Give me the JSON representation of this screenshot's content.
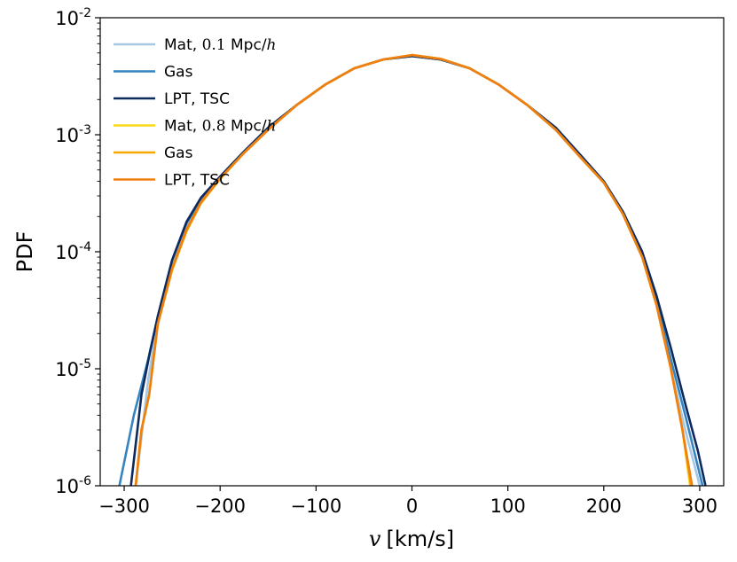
{
  "chart_data": {
    "type": "line",
    "title": "",
    "xlabel_var": "v",
    "xlabel_unit": "[km/s]",
    "ylabel": "PDF",
    "xlim": [
      -325,
      325
    ],
    "ylim": [
      1e-06,
      0.01
    ],
    "yscale": "log",
    "xticks": [
      -300,
      -200,
      -100,
      0,
      100,
      200,
      300
    ],
    "xtick_labels": [
      "−300",
      "−200",
      "−100",
      "0",
      "100",
      "200",
      "300"
    ],
    "yticks": [
      {
        "value": 1e-06,
        "base": "10",
        "exp": "-6"
      },
      {
        "value": 1e-05,
        "base": "10",
        "exp": "-5"
      },
      {
        "value": 0.0001,
        "base": "10",
        "exp": "-4"
      },
      {
        "value": 0.001,
        "base": "10",
        "exp": "-3"
      },
      {
        "value": 0.01,
        "base": "10",
        "exp": "-2"
      }
    ],
    "legend_position": "upper-left",
    "series": [
      {
        "name": "Mat, 0.1 Mpc/h",
        "label_prefix": "Mat, ",
        "label_scale": "0.1",
        "label_unit": " Mpc/",
        "label_h": "h",
        "color": "#a6c8e4",
        "x": [
          -288,
          -275,
          -265,
          -250,
          -235,
          -220,
          -200,
          -175,
          -150,
          -120,
          -90,
          -60,
          -30,
          0,
          30,
          60,
          90,
          120,
          150,
          175,
          200,
          220,
          240,
          255,
          270,
          285,
          300
        ],
        "y": [
          1e-06,
          8e-06,
          2.6e-05,
          8e-05,
          0.00017,
          0.00028,
          0.00043,
          0.0007,
          0.0011,
          0.0018,
          0.0027,
          0.0037,
          0.0044,
          0.00475,
          0.0044,
          0.0037,
          0.0027,
          0.0018,
          0.0011,
          0.00065,
          0.00039,
          0.00021,
          9e-05,
          3.5e-05,
          1e-05,
          3e-06,
          1e-06
        ]
      },
      {
        "name": "Gas",
        "color": "#3584bf",
        "x": [
          -305,
          -290,
          -275,
          -265,
          -250,
          -235,
          -220,
          -200,
          -175,
          -150,
          -120,
          -90,
          -60,
          -30,
          0,
          30,
          60,
          90,
          120,
          150,
          175,
          200,
          220,
          240,
          255,
          270,
          285,
          303
        ],
        "y": [
          1e-06,
          4e-06,
          1.2e-05,
          2.8e-05,
          8.5e-05,
          0.000175,
          0.00028,
          0.00043,
          0.0007,
          0.0011,
          0.0018,
          0.0027,
          0.0037,
          0.0044,
          0.00475,
          0.0044,
          0.0037,
          0.0027,
          0.0018,
          0.0011,
          0.00065,
          0.00039,
          0.00021,
          9e-05,
          3.8e-05,
          1.2e-05,
          4e-06,
          1e-06
        ]
      },
      {
        "name": "LPT, TSC",
        "color": "#0c2a5e",
        "x": [
          -293,
          -282,
          -273,
          -265,
          -250,
          -235,
          -220,
          -200,
          -175,
          -150,
          -120,
          -90,
          -60,
          -30,
          0,
          30,
          60,
          90,
          120,
          150,
          175,
          200,
          220,
          240,
          255,
          270,
          285,
          298,
          306
        ],
        "y": [
          1e-06,
          6e-06,
          1.4e-05,
          2.8e-05,
          8.5e-05,
          0.00018,
          0.00029,
          0.00044,
          0.00072,
          0.00115,
          0.0018,
          0.0027,
          0.0037,
          0.0044,
          0.0047,
          0.0044,
          0.0037,
          0.0027,
          0.0018,
          0.00115,
          0.00068,
          0.0004,
          0.00022,
          0.0001,
          4.2e-05,
          1.5e-05,
          5e-06,
          2e-06,
          1e-06
        ]
      },
      {
        "name": "Mat, 0.8 Mpc/h",
        "label_prefix": "Mat, ",
        "label_scale": "0.8",
        "label_unit": " Mpc/",
        "label_h": "h",
        "color": "#f7d917",
        "x": [
          -288,
          -282,
          -274,
          -265,
          -250,
          -235,
          -220,
          -200,
          -175,
          -150,
          -120,
          -90,
          -60,
          -30,
          0,
          30,
          60,
          90,
          120,
          150,
          175,
          200,
          220,
          240,
          255,
          270,
          282,
          290
        ],
        "y": [
          1e-06,
          3e-06,
          6e-06,
          2.4e-05,
          7e-05,
          0.00015,
          0.00026,
          0.00042,
          0.0007,
          0.0011,
          0.0018,
          0.0027,
          0.0037,
          0.0044,
          0.0048,
          0.00445,
          0.0037,
          0.0027,
          0.0018,
          0.0011,
          0.00065,
          0.00039,
          0.00021,
          9e-05,
          3.5e-05,
          1e-05,
          3e-06,
          1e-06
        ]
      },
      {
        "name": "Gas",
        "color": "#f5a800",
        "x": [
          -288,
          -282,
          -274,
          -265,
          -250,
          -235,
          -220,
          -200,
          -175,
          -150,
          -120,
          -90,
          -60,
          -30,
          0,
          30,
          60,
          90,
          120,
          150,
          175,
          200,
          220,
          240,
          255,
          270,
          282,
          291
        ],
        "y": [
          1e-06,
          3e-06,
          6e-06,
          2.4e-05,
          7e-05,
          0.00015,
          0.00026,
          0.00042,
          0.0007,
          0.0011,
          0.0018,
          0.0027,
          0.0037,
          0.0044,
          0.0048,
          0.00445,
          0.0037,
          0.0027,
          0.0018,
          0.0011,
          0.00065,
          0.00039,
          0.00021,
          9e-05,
          3.5e-05,
          1e-05,
          3e-06,
          1e-06
        ]
      },
      {
        "name": "LPT, TSC",
        "color": "#f07f12",
        "x": [
          -288,
          -282,
          -274,
          -265,
          -250,
          -235,
          -220,
          -200,
          -175,
          -150,
          -120,
          -90,
          -60,
          -30,
          0,
          30,
          60,
          90,
          120,
          150,
          175,
          200,
          220,
          240,
          255,
          270,
          282,
          292
        ],
        "y": [
          1e-06,
          3e-06,
          6e-06,
          2.4e-05,
          7.2e-05,
          0.000155,
          0.000265,
          0.000425,
          0.0007,
          0.0011,
          0.0018,
          0.0027,
          0.0037,
          0.0044,
          0.0048,
          0.00445,
          0.0037,
          0.0027,
          0.0018,
          0.0011,
          0.00065,
          0.00039,
          0.00021,
          9e-05,
          3.5e-05,
          1e-05,
          3e-06,
          1e-06
        ]
      }
    ]
  }
}
